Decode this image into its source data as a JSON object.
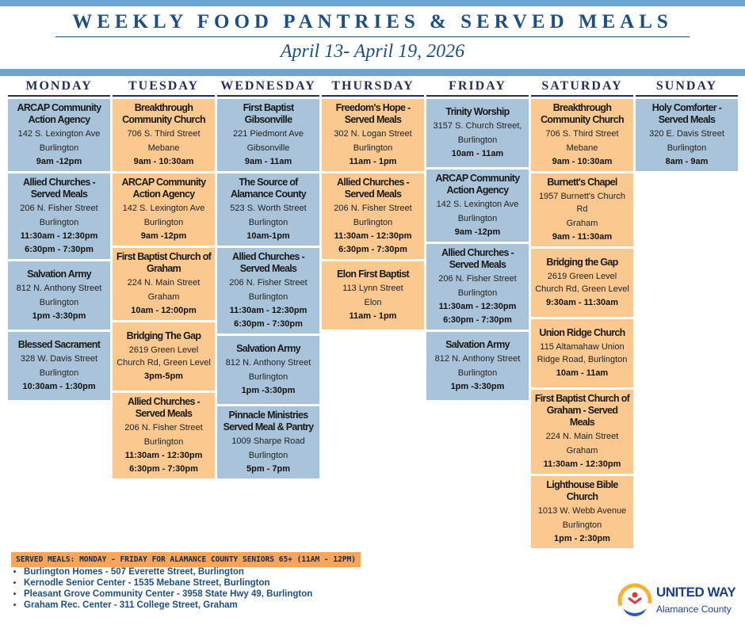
{
  "header": {
    "title": "WEEKLY FOOD PANTRIES & SERVED MEALS",
    "dates": "April 13- April 19, 2026"
  },
  "days": [
    {
      "name": "MONDAY",
      "color": "#a9c4da",
      "entries": [
        {
          "name": "ARCAP Community Action Agency",
          "lines": [
            "142 S. Lexington Ave",
            "Burlington"
          ],
          "times": [
            "9am -12pm"
          ]
        },
        {
          "name": "Allied Churches - Served Meals",
          "lines": [
            "206 N. Fisher Street",
            "Burlington"
          ],
          "times": [
            "11:30am - 12:30pm",
            "6:30pm - 7:30pm"
          ]
        },
        {
          "name": "Salvation Army",
          "lines": [
            "812 N. Anthony Street",
            "Burlington"
          ],
          "times": [
            "1pm -3:30pm"
          ]
        },
        {
          "name": "Blessed Sacrament",
          "lines": [
            "328 W. Davis Street",
            "Burlington"
          ],
          "times": [
            "10:30am - 1:30pm"
          ]
        }
      ]
    },
    {
      "name": "TUESDAY",
      "color": "#fbc890",
      "entries": [
        {
          "name": "Breakthrough Community Church",
          "lines": [
            "706 S. Third Street",
            "Mebane"
          ],
          "times": [
            "9am - 10:30am"
          ]
        },
        {
          "name": "ARCAP Community Action Agency",
          "lines": [
            "142 S. Lexington Ave",
            "Burlington"
          ],
          "times": [
            "9am -12pm"
          ]
        },
        {
          "name": "First Baptist Church of Graham",
          "lines": [
            "224 N. Main Street",
            "Graham"
          ],
          "times": [
            "10am - 12:00pm"
          ]
        },
        {
          "name": "Bridging The Gap",
          "lines": [
            "2619 Green Level Church Rd, Green Level"
          ],
          "times": [
            "3pm-5pm"
          ]
        },
        {
          "name": "Allied Churches - Served Meals",
          "lines": [
            "206 N. Fisher Street",
            "Burlington"
          ],
          "times": [
            "11:30am - 12:30pm",
            "6:30pm - 7:30pm"
          ]
        }
      ]
    },
    {
      "name": "WEDNESDAY",
      "color": "#a9c4da",
      "entries": [
        {
          "name": "First Baptist Gibsonville",
          "lines": [
            "221 Piedmont Ave",
            "Gibsonville"
          ],
          "times": [
            "9am - 11am"
          ]
        },
        {
          "name": "The Source of Alamance County",
          "lines": [
            "523 S. Worth Street",
            "Burlington"
          ],
          "times": [
            "10am-1pm"
          ]
        },
        {
          "name": "Allied Churches - Served Meals",
          "lines": [
            "206 N. Fisher Street",
            "Burlington"
          ],
          "times": [
            "11:30am - 12:30pm",
            "6:30pm - 7:30pm"
          ]
        },
        {
          "name": "Salvation Army",
          "lines": [
            "812 N. Anthony Street",
            "Burlington"
          ],
          "times": [
            "1pm -3:30pm"
          ]
        },
        {
          "name": "Pinnacle Ministries Served Meal & Pantry",
          "lines": [
            "1009 Sharpe Road",
            "Burlington"
          ],
          "times": [
            "5pm - 7pm"
          ]
        }
      ]
    },
    {
      "name": "THURSDAY",
      "color": "#fbc890",
      "entries": [
        {
          "name": "Freedom's Hope - Served Meals",
          "lines": [
            "302 N. Logan Street",
            "Burlington"
          ],
          "times": [
            "11am - 1pm"
          ]
        },
        {
          "name": "Allied Churches - Served Meals",
          "lines": [
            "206 N. Fisher Street",
            "Burlington"
          ],
          "times": [
            "11:30am - 12:30pm",
            "6:30pm - 7:30pm"
          ]
        },
        {
          "name": "Elon First Baptist",
          "lines": [
            "113 Lynn Street",
            "Elon"
          ],
          "times": [
            "11am - 1pm"
          ]
        }
      ]
    },
    {
      "name": "FRIDAY",
      "color": "#a9c4da",
      "entries": [
        {
          "name": "Trinity Worship",
          "lines": [
            "3157 S. Church Street,",
            "Burlington"
          ],
          "times": [
            "10am - 11am"
          ]
        },
        {
          "name": "ARCAP Community Action Agency",
          "lines": [
            "142 S. Lexington Ave",
            "Burlington"
          ],
          "times": [
            "9am -12pm"
          ]
        },
        {
          "name": "Allied Churches - Served Meals",
          "lines": [
            "206 N. Fisher Street",
            "Burlington"
          ],
          "times": [
            "11:30am - 12:30pm",
            "6:30pm - 7:30pm"
          ]
        },
        {
          "name": "Salvation Army",
          "lines": [
            "812 N. Anthony Street",
            "Burlington"
          ],
          "times": [
            "1pm -3:30pm"
          ]
        }
      ]
    },
    {
      "name": "SATURDAY",
      "color": "#fbc890",
      "entries": [
        {
          "name": "Breakthrough Community Church",
          "lines": [
            "706 S. Third Street",
            "Mebane"
          ],
          "times": [
            "9am - 10:30am"
          ]
        },
        {
          "name": "Burnett's Chapel",
          "lines": [
            "1957 Burnett's Church Rd",
            "Graham"
          ],
          "times": [
            "9am - 11:30am"
          ]
        },
        {
          "name": "Bridging the Gap",
          "lines": [
            "2619 Green Level Church Rd, Green Level"
          ],
          "times": [
            "9:30am - 11:30am"
          ]
        },
        {
          "name": "Union Ridge Church",
          "lines": [
            "115 Altamahaw Union Ridge Road, Burlington"
          ],
          "times": [
            "10am - 11am"
          ]
        },
        {
          "name": "First Baptist Church of Graham - Served Meals",
          "lines": [
            "224 N. Main Street",
            "Graham"
          ],
          "times": [
            "11:30am - 12:30pm"
          ]
        },
        {
          "name": "Lighthouse Bible Church",
          "lines": [
            "1013 W. Webb Avenue",
            "Burlington"
          ],
          "times": [
            "1pm - 2:30pm"
          ]
        }
      ]
    },
    {
      "name": "SUNDAY",
      "color": "#a9c4da",
      "entries": [
        {
          "name": "Holy Comforter - Served Meals",
          "lines": [
            "320 E. Davis Street",
            "Burlington"
          ],
          "times": [
            "8am - 9am"
          ]
        }
      ]
    }
  ],
  "footer": {
    "banner": "SERVED MEALS:  MONDAY - FRIDAY FOR ALAMANCE COUNTY SENIORS 65+ (11AM - 12PM)",
    "items": [
      "Burlington Homes - 507 Everette Street, Burlington",
      "Kernodle Senior Center - 1535 Mebane Street, Burlington",
      "Pleasant Grove Community Center - 3958 State Hwy 49, Burlington",
      "Graham Rec. Center - 311 College Street, Graham"
    ],
    "logo": {
      "name": "UNITED WAY",
      "sub": "Alamance County"
    }
  }
}
